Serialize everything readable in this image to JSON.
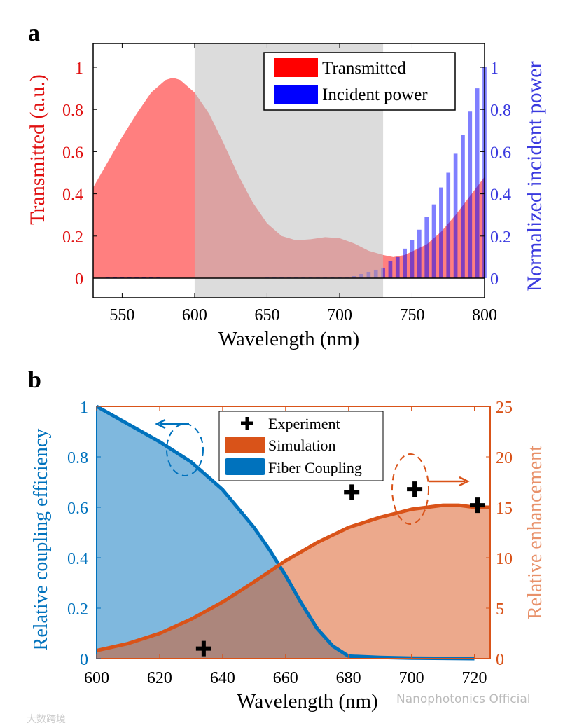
{
  "chart_data": [
    {
      "panel_label": "a",
      "type": "area+bar",
      "xlabel": "Wavelength (nm)",
      "ylabel_left": "Transmitted (a.u.)",
      "ylabel_right": "Normalized incident power",
      "xlim": [
        530,
        800
      ],
      "ylim": [
        -0.093,
        1.113
      ],
      "x_ticks": [
        "550",
        "600",
        "650",
        "700",
        "750",
        "800"
      ],
      "y_ticks_left": [
        "0",
        "0.2",
        "0.4",
        "0.6",
        "0.8",
        "1"
      ],
      "y_ticks_right": [
        "0",
        "0.2",
        "0.4",
        "0.6",
        "0.8",
        "1"
      ],
      "shaded_region": [
        600,
        730
      ],
      "legend": [
        "Transmitted",
        "Incident power"
      ],
      "legend_position": "top-right",
      "colors": {
        "transmitted": "#ff0000",
        "incident": "#0000ff",
        "left_axis": "#e01010",
        "right_axis": "#3a3adf",
        "shade": "#d9d9d9"
      },
      "series": [
        {
          "name": "Transmitted",
          "x": [
            530,
            540,
            550,
            560,
            570,
            580,
            585,
            590,
            600,
            610,
            620,
            630,
            640,
            650,
            660,
            670,
            680,
            690,
            700,
            710,
            720,
            730,
            737,
            745,
            760,
            770,
            780,
            790,
            800
          ],
          "y": [
            0.43,
            0.55,
            0.67,
            0.78,
            0.88,
            0.94,
            0.95,
            0.94,
            0.88,
            0.78,
            0.64,
            0.49,
            0.36,
            0.26,
            0.2,
            0.18,
            0.185,
            0.195,
            0.19,
            0.165,
            0.13,
            0.11,
            0.1,
            0.11,
            0.16,
            0.22,
            0.3,
            0.39,
            0.48
          ]
        },
        {
          "name": "Incident power",
          "x": [
            540,
            545,
            550,
            555,
            560,
            565,
            570,
            575,
            650,
            655,
            660,
            665,
            670,
            675,
            680,
            685,
            690,
            695,
            700,
            705,
            710,
            715,
            720,
            725,
            730,
            735,
            740,
            745,
            750,
            755,
            760,
            765,
            770,
            775,
            780,
            785,
            790,
            795,
            800
          ],
          "y": [
            0.005,
            0.005,
            0.005,
            0.005,
            0.005,
            0.005,
            0.005,
            0.005,
            0.005,
            0.005,
            0.005,
            0.005,
            0.005,
            0.005,
            0.005,
            0.005,
            0.005,
            0.005,
            0.005,
            0.005,
            0.01,
            0.02,
            0.03,
            0.04,
            0.05,
            0.08,
            0.1,
            0.14,
            0.18,
            0.23,
            0.29,
            0.35,
            0.43,
            0.5,
            0.59,
            0.68,
            0.79,
            0.9,
            1.0
          ]
        }
      ]
    },
    {
      "panel_label": "b",
      "type": "area+scatter",
      "xlabel": "Wavelength (nm)",
      "ylabel_left": "Relative coupling efficiency",
      "ylabel_right": "Relative enhancement",
      "xlim": [
        600,
        725
      ],
      "ylim_left": [
        0,
        1
      ],
      "ylim_right": [
        0,
        25
      ],
      "x_ticks": [
        "600",
        "620",
        "640",
        "660",
        "680",
        "700",
        "720"
      ],
      "y_ticks_left": [
        "0",
        "0.2",
        "0.4",
        "0.6",
        "0.8",
        "1"
      ],
      "y_ticks_right": [
        "0",
        "5",
        "10",
        "15",
        "20",
        "25"
      ],
      "legend": [
        "Experiment",
        "Simulation",
        "Fiber Coupling"
      ],
      "legend_position": "top-center",
      "colors": {
        "fiber": "#0072bd",
        "simulation": "#d95319",
        "experiment": "#000000"
      },
      "series": [
        {
          "name": "Fiber Coupling",
          "axis": "left",
          "x": [
            600,
            610,
            620,
            630,
            640,
            650,
            655,
            660,
            665,
            670,
            675,
            680,
            690,
            700,
            720
          ],
          "y": [
            1.0,
            0.93,
            0.86,
            0.78,
            0.67,
            0.52,
            0.43,
            0.33,
            0.22,
            0.12,
            0.05,
            0.01,
            0.005,
            0.002,
            0
          ]
        },
        {
          "name": "Simulation",
          "axis": "right",
          "x": [
            600,
            610,
            620,
            630,
            640,
            650,
            660,
            670,
            680,
            690,
            700,
            710,
            715,
            720,
            725
          ],
          "y": [
            0.8,
            1.5,
            2.5,
            3.9,
            5.6,
            7.6,
            9.7,
            11.5,
            13.0,
            14.0,
            14.8,
            15.2,
            15.2,
            15.0,
            15.0
          ]
        },
        {
          "name": "Experiment",
          "axis": "right",
          "x": [
            634,
            681,
            701,
            721
          ],
          "y": [
            1.0,
            16.5,
            16.8,
            15.2
          ]
        }
      ]
    }
  ],
  "watermarks": {
    "publisher": "Nanophotonics Official",
    "site": "大数跨境"
  }
}
